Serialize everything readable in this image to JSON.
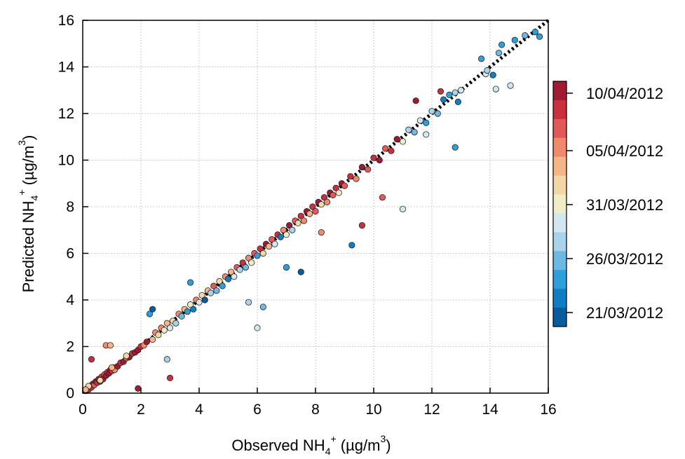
{
  "chart_data": {
    "type": "scatter",
    "xlabel": {
      "base": "Observed NH",
      "sub": "4",
      "sup": "+",
      "unit_open": " (µg/m",
      "unit_sup": "3",
      "unit_close": ")"
    },
    "ylabel": {
      "base": "Predicted NH",
      "sub": "4",
      "sup": "+",
      "unit_open": " (µg/m",
      "unit_sup": "3",
      "unit_close": ")"
    },
    "xlim": [
      0,
      16
    ],
    "ylim": [
      0,
      16
    ],
    "x_ticks": [
      "0",
      "2",
      "4",
      "6",
      "8",
      "10",
      "12",
      "14",
      "16"
    ],
    "y_ticks": [
      "0",
      "2",
      "4",
      "6",
      "8",
      "10",
      "12",
      "14",
      "16"
    ],
    "grid": true,
    "reference_line": {
      "style": "dotted",
      "slope": 1,
      "intercept": 0,
      "color": "#000000"
    },
    "colorbar": {
      "position": "right",
      "labels": [
        "10/04/2012",
        "05/04/2012",
        "31/03/2012",
        "26/03/2012",
        "21/03/2012"
      ],
      "colors_top_to_bottom": [
        "#9e1b32",
        "#c8303e",
        "#e05a5a",
        "#ef8b6c",
        "#f5b687",
        "#f3d7a6",
        "#f1ecc8",
        "#d3e7f1",
        "#a8d3ea",
        "#6cb9e3",
        "#2f9fd9",
        "#0f7fc2",
        "#0a5c9c"
      ]
    },
    "points": [
      {
        "x": 0.1,
        "y": 0.1,
        "c": 0
      },
      {
        "x": 0.15,
        "y": 0.2,
        "c": 0
      },
      {
        "x": 0.2,
        "y": 0.15,
        "c": 1
      },
      {
        "x": 0.25,
        "y": 0.3,
        "c": 0
      },
      {
        "x": 0.3,
        "y": 0.25,
        "c": 1
      },
      {
        "x": 0.35,
        "y": 0.4,
        "c": 0
      },
      {
        "x": 0.4,
        "y": 0.35,
        "c": 2
      },
      {
        "x": 0.45,
        "y": 0.5,
        "c": 0
      },
      {
        "x": 0.5,
        "y": 0.45,
        "c": 1
      },
      {
        "x": 0.55,
        "y": 0.6,
        "c": 0
      },
      {
        "x": 0.6,
        "y": 0.5,
        "c": 0
      },
      {
        "x": 0.65,
        "y": 0.7,
        "c": 1
      },
      {
        "x": 0.7,
        "y": 0.6,
        "c": 0
      },
      {
        "x": 0.75,
        "y": 0.8,
        "c": 2
      },
      {
        "x": 0.8,
        "y": 0.75,
        "c": 0
      },
      {
        "x": 0.85,
        "y": 0.9,
        "c": 1
      },
      {
        "x": 0.9,
        "y": 0.85,
        "c": 0
      },
      {
        "x": 0.95,
        "y": 1.0,
        "c": 0
      },
      {
        "x": 1.0,
        "y": 0.95,
        "c": 1
      },
      {
        "x": 1.05,
        "y": 1.1,
        "c": 0
      },
      {
        "x": 1.1,
        "y": 1.0,
        "c": 3
      },
      {
        "x": 1.2,
        "y": 1.15,
        "c": 0
      },
      {
        "x": 1.3,
        "y": 1.3,
        "c": 1
      },
      {
        "x": 1.4,
        "y": 1.35,
        "c": 0
      },
      {
        "x": 1.5,
        "y": 1.5,
        "c": 2
      },
      {
        "x": 1.6,
        "y": 1.55,
        "c": 0
      },
      {
        "x": 1.7,
        "y": 1.7,
        "c": 1
      },
      {
        "x": 1.8,
        "y": 1.75,
        "c": 0
      },
      {
        "x": 1.9,
        "y": 1.85,
        "c": 0
      },
      {
        "x": 2.0,
        "y": 2.0,
        "c": 1
      },
      {
        "x": 2.1,
        "y": 2.05,
        "c": 3
      },
      {
        "x": 2.2,
        "y": 2.2,
        "c": 0
      },
      {
        "x": 0.3,
        "y": 1.45,
        "c": 1
      },
      {
        "x": 0.8,
        "y": 2.05,
        "c": 3
      },
      {
        "x": 0.95,
        "y": 2.05,
        "c": 4
      },
      {
        "x": 1.9,
        "y": 0.2,
        "c": 0
      },
      {
        "x": 0.2,
        "y": 0.3,
        "c": 5
      },
      {
        "x": 0.1,
        "y": 0.15,
        "c": 4
      },
      {
        "x": 0.6,
        "y": 0.55,
        "c": 5
      },
      {
        "x": 1.0,
        "y": 1.1,
        "c": 4
      },
      {
        "x": 1.5,
        "y": 1.6,
        "c": 5
      },
      {
        "x": 2.4,
        "y": 2.3,
        "c": 4
      },
      {
        "x": 2.5,
        "y": 2.6,
        "c": 3
      },
      {
        "x": 2.6,
        "y": 2.5,
        "c": 5
      },
      {
        "x": 2.7,
        "y": 2.8,
        "c": 3
      },
      {
        "x": 2.8,
        "y": 2.7,
        "c": 6
      },
      {
        "x": 2.9,
        "y": 3.0,
        "c": 4
      },
      {
        "x": 3.0,
        "y": 2.8,
        "c": 7
      },
      {
        "x": 3.1,
        "y": 3.1,
        "c": 5
      },
      {
        "x": 3.2,
        "y": 3.0,
        "c": 8
      },
      {
        "x": 3.3,
        "y": 3.4,
        "c": 3
      },
      {
        "x": 3.4,
        "y": 3.3,
        "c": 9
      },
      {
        "x": 3.5,
        "y": 3.6,
        "c": 4
      },
      {
        "x": 3.6,
        "y": 3.5,
        "c": 10
      },
      {
        "x": 3.7,
        "y": 3.8,
        "c": 6
      },
      {
        "x": 3.8,
        "y": 3.6,
        "c": 11
      },
      {
        "x": 3.9,
        "y": 4.0,
        "c": 3
      },
      {
        "x": 4.0,
        "y": 3.9,
        "c": 7
      },
      {
        "x": 4.1,
        "y": 4.2,
        "c": 5
      },
      {
        "x": 4.2,
        "y": 4.0,
        "c": 12
      },
      {
        "x": 4.3,
        "y": 4.4,
        "c": 4
      },
      {
        "x": 4.4,
        "y": 4.3,
        "c": 8
      },
      {
        "x": 4.5,
        "y": 4.6,
        "c": 2
      },
      {
        "x": 4.6,
        "y": 4.4,
        "c": 9
      },
      {
        "x": 4.7,
        "y": 4.8,
        "c": 5
      },
      {
        "x": 4.8,
        "y": 4.6,
        "c": 10
      },
      {
        "x": 4.9,
        "y": 5.0,
        "c": 3
      },
      {
        "x": 5.0,
        "y": 4.9,
        "c": 11
      },
      {
        "x": 5.1,
        "y": 5.2,
        "c": 4
      },
      {
        "x": 5.2,
        "y": 5.0,
        "c": 7
      },
      {
        "x": 5.3,
        "y": 5.4,
        "c": 2
      },
      {
        "x": 5.4,
        "y": 5.3,
        "c": 8
      },
      {
        "x": 5.5,
        "y": 5.6,
        "c": 1
      },
      {
        "x": 5.6,
        "y": 5.4,
        "c": 9
      },
      {
        "x": 5.7,
        "y": 5.8,
        "c": 3
      },
      {
        "x": 5.8,
        "y": 5.6,
        "c": 6
      },
      {
        "x": 5.9,
        "y": 6.0,
        "c": 2
      },
      {
        "x": 6.0,
        "y": 5.9,
        "c": 10
      },
      {
        "x": 6.1,
        "y": 6.2,
        "c": 1
      },
      {
        "x": 6.2,
        "y": 6.0,
        "c": 5
      },
      {
        "x": 6.3,
        "y": 6.4,
        "c": 0
      },
      {
        "x": 6.4,
        "y": 6.3,
        "c": 4
      },
      {
        "x": 6.5,
        "y": 6.6,
        "c": 2
      },
      {
        "x": 6.6,
        "y": 6.4,
        "c": 7
      },
      {
        "x": 6.7,
        "y": 6.8,
        "c": 1
      },
      {
        "x": 6.8,
        "y": 6.7,
        "c": 11
      },
      {
        "x": 6.9,
        "y": 7.0,
        "c": 3
      },
      {
        "x": 7.0,
        "y": 6.8,
        "c": 6
      },
      {
        "x": 7.1,
        "y": 7.2,
        "c": 0
      },
      {
        "x": 7.2,
        "y": 7.0,
        "c": 8
      },
      {
        "x": 7.3,
        "y": 7.4,
        "c": 2
      },
      {
        "x": 7.4,
        "y": 7.3,
        "c": 5
      },
      {
        "x": 7.5,
        "y": 7.6,
        "c": 1
      },
      {
        "x": 7.6,
        "y": 7.4,
        "c": 3
      },
      {
        "x": 7.7,
        "y": 7.8,
        "c": 0
      },
      {
        "x": 7.8,
        "y": 7.7,
        "c": 4
      },
      {
        "x": 7.9,
        "y": 8.0,
        "c": 1
      },
      {
        "x": 8.0,
        "y": 7.8,
        "c": 2
      },
      {
        "x": 8.1,
        "y": 8.2,
        "c": 0
      },
      {
        "x": 8.2,
        "y": 8.1,
        "c": 5
      },
      {
        "x": 8.3,
        "y": 8.4,
        "c": 1
      },
      {
        "x": 8.4,
        "y": 8.2,
        "c": 3
      },
      {
        "x": 8.5,
        "y": 8.6,
        "c": 0
      },
      {
        "x": 8.6,
        "y": 8.5,
        "c": 2
      },
      {
        "x": 8.7,
        "y": 8.8,
        "c": 1
      },
      {
        "x": 8.8,
        "y": 8.6,
        "c": 6
      },
      {
        "x": 8.9,
        "y": 9.0,
        "c": 0
      },
      {
        "x": 9.0,
        "y": 8.9,
        "c": 2
      },
      {
        "x": 9.2,
        "y": 9.3,
        "c": 1
      },
      {
        "x": 9.4,
        "y": 9.2,
        "c": 3
      },
      {
        "x": 9.6,
        "y": 9.7,
        "c": 0
      },
      {
        "x": 9.8,
        "y": 9.6,
        "c": 2
      },
      {
        "x": 10.0,
        "y": 10.1,
        "c": 1
      },
      {
        "x": 10.2,
        "y": 10.0,
        "c": 0
      },
      {
        "x": 10.4,
        "y": 10.5,
        "c": 2
      },
      {
        "x": 10.6,
        "y": 10.4,
        "c": 1
      },
      {
        "x": 10.8,
        "y": 10.9,
        "c": 0
      },
      {
        "x": 11.0,
        "y": 10.8,
        "c": 6
      },
      {
        "x": 11.2,
        "y": 11.3,
        "c": 8
      },
      {
        "x": 11.4,
        "y": 11.2,
        "c": 9
      },
      {
        "x": 11.6,
        "y": 11.7,
        "c": 7
      },
      {
        "x": 11.8,
        "y": 11.6,
        "c": 10
      },
      {
        "x": 12.0,
        "y": 12.1,
        "c": 8
      },
      {
        "x": 12.2,
        "y": 12.0,
        "c": 9
      },
      {
        "x": 12.4,
        "y": 12.6,
        "c": 11
      },
      {
        "x": 12.6,
        "y": 12.8,
        "c": 10
      },
      {
        "x": 12.8,
        "y": 12.9,
        "c": 8
      },
      {
        "x": 13.0,
        "y": 13.0,
        "c": 7
      },
      {
        "x": 2.3,
        "y": 3.4,
        "c": 10
      },
      {
        "x": 2.4,
        "y": 3.6,
        "c": 12
      },
      {
        "x": 3.0,
        "y": 0.65,
        "c": 1
      },
      {
        "x": 2.9,
        "y": 1.45,
        "c": 8
      },
      {
        "x": 3.7,
        "y": 4.75,
        "c": 10
      },
      {
        "x": 5.7,
        "y": 3.9,
        "c": 8
      },
      {
        "x": 6.0,
        "y": 2.8,
        "c": 7
      },
      {
        "x": 6.2,
        "y": 3.7,
        "c": 9
      },
      {
        "x": 7.5,
        "y": 5.2,
        "c": 12
      },
      {
        "x": 7.0,
        "y": 5.4,
        "c": 10
      },
      {
        "x": 9.25,
        "y": 6.35,
        "c": 11
      },
      {
        "x": 9.6,
        "y": 7.2,
        "c": 1
      },
      {
        "x": 11.0,
        "y": 7.9,
        "c": 7
      },
      {
        "x": 8.2,
        "y": 6.9,
        "c": 3
      },
      {
        "x": 10.3,
        "y": 8.4,
        "c": 2
      },
      {
        "x": 12.8,
        "y": 10.55,
        "c": 10
      },
      {
        "x": 11.45,
        "y": 12.55,
        "c": 0
      },
      {
        "x": 12.3,
        "y": 12.95,
        "c": 1
      },
      {
        "x": 13.7,
        "y": 14.35,
        "c": 10
      },
      {
        "x": 13.85,
        "y": 13.7,
        "c": 7
      },
      {
        "x": 14.1,
        "y": 13.65,
        "c": 11
      },
      {
        "x": 14.2,
        "y": 13.05,
        "c": 7
      },
      {
        "x": 14.3,
        "y": 14.6,
        "c": 9
      },
      {
        "x": 14.4,
        "y": 14.95,
        "c": 10
      },
      {
        "x": 14.7,
        "y": 13.2,
        "c": 7
      },
      {
        "x": 14.85,
        "y": 15.15,
        "c": 10
      },
      {
        "x": 15.2,
        "y": 15.35,
        "c": 9
      },
      {
        "x": 15.55,
        "y": 15.5,
        "c": 10
      },
      {
        "x": 15.7,
        "y": 15.3,
        "c": 10
      },
      {
        "x": 13.9,
        "y": 13.85,
        "c": 8
      },
      {
        "x": 12.9,
        "y": 12.5,
        "c": 11
      },
      {
        "x": 11.8,
        "y": 11.1,
        "c": 7
      }
    ]
  }
}
